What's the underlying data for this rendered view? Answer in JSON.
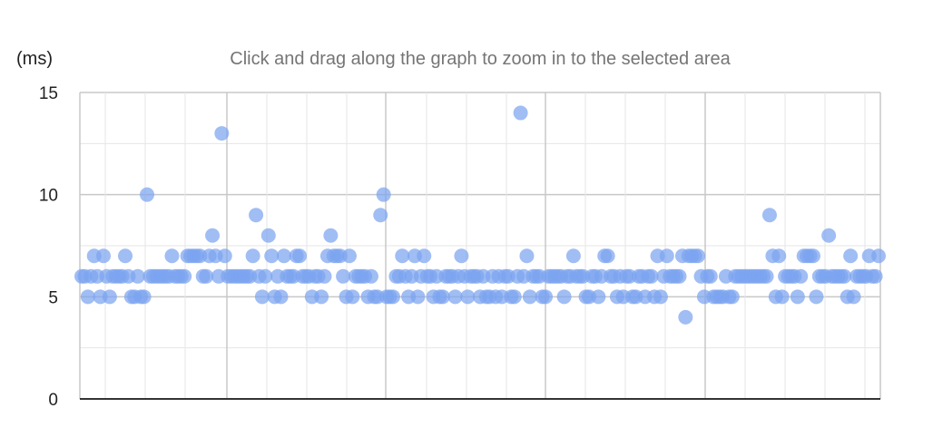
{
  "header": {
    "unit_label": "(ms)",
    "hint": "Click and drag along the graph to zoom in to the selected area"
  },
  "colors": {
    "point": "#7BA3F0",
    "grid_major": "#c8c8c8",
    "grid_minor": "#e6e6e6",
    "axis": "#333333"
  },
  "chart_data": {
    "type": "scatter",
    "title": "",
    "xlabel": "",
    "ylabel": "(ms)",
    "ylim": [
      0,
      15
    ],
    "yticks": [
      0,
      5,
      10,
      15
    ],
    "grid": true,
    "series": [
      {
        "values": [
          6,
          6,
          5,
          6,
          7,
          6,
          5,
          7,
          6,
          5,
          6,
          6,
          6,
          6,
          7,
          6,
          5,
          5,
          6,
          5,
          5,
          10,
          6,
          6,
          6,
          6,
          6,
          6,
          6,
          7,
          6,
          6,
          6,
          6,
          7,
          7,
          7,
          7,
          7,
          6,
          6,
          7,
          8,
          7,
          6,
          13,
          7,
          6,
          6,
          6,
          6,
          6,
          6,
          6,
          6,
          7,
          9,
          6,
          5,
          6,
          8,
          7,
          5,
          6,
          5,
          7,
          6,
          6,
          6,
          7,
          7,
          6,
          6,
          6,
          5,
          6,
          6,
          5,
          6,
          7,
          8,
          7,
          7,
          7,
          6,
          5,
          7,
          5,
          6,
          6,
          6,
          6,
          5,
          6,
          5,
          5,
          9,
          10,
          5,
          5,
          5,
          6,
          6,
          7,
          6,
          5,
          6,
          7,
          5,
          6,
          7,
          6,
          6,
          5,
          6,
          5,
          5,
          6,
          6,
          6,
          5,
          6,
          7,
          6,
          5,
          6,
          6,
          6,
          5,
          6,
          5,
          5,
          6,
          5,
          6,
          5,
          6,
          6,
          5,
          5,
          6,
          14,
          6,
          7,
          5,
          6,
          6,
          6,
          5,
          5,
          6,
          6,
          6,
          6,
          6,
          5,
          6,
          6,
          7,
          6,
          6,
          6,
          5,
          5,
          6,
          6,
          5,
          6,
          7,
          7,
          6,
          6,
          5,
          6,
          5,
          6,
          6,
          5,
          5,
          6,
          6,
          5,
          6,
          6,
          5,
          7,
          5,
          6,
          7,
          6,
          6,
          6,
          6,
          7,
          4,
          7,
          7,
          7,
          7,
          6,
          5,
          6,
          6,
          5,
          5,
          5,
          5,
          6,
          5,
          5,
          6,
          6,
          6,
          6,
          6,
          6,
          6,
          6,
          6,
          6,
          6,
          9,
          7,
          5,
          7,
          5,
          6,
          6,
          6,
          6,
          5,
          6,
          7,
          7,
          7,
          7,
          5,
          6,
          6,
          6,
          8,
          6,
          6,
          6,
          6,
          6,
          5,
          7,
          5,
          6,
          6,
          6,
          6,
          7,
          6,
          6,
          7
        ]
      }
    ]
  }
}
